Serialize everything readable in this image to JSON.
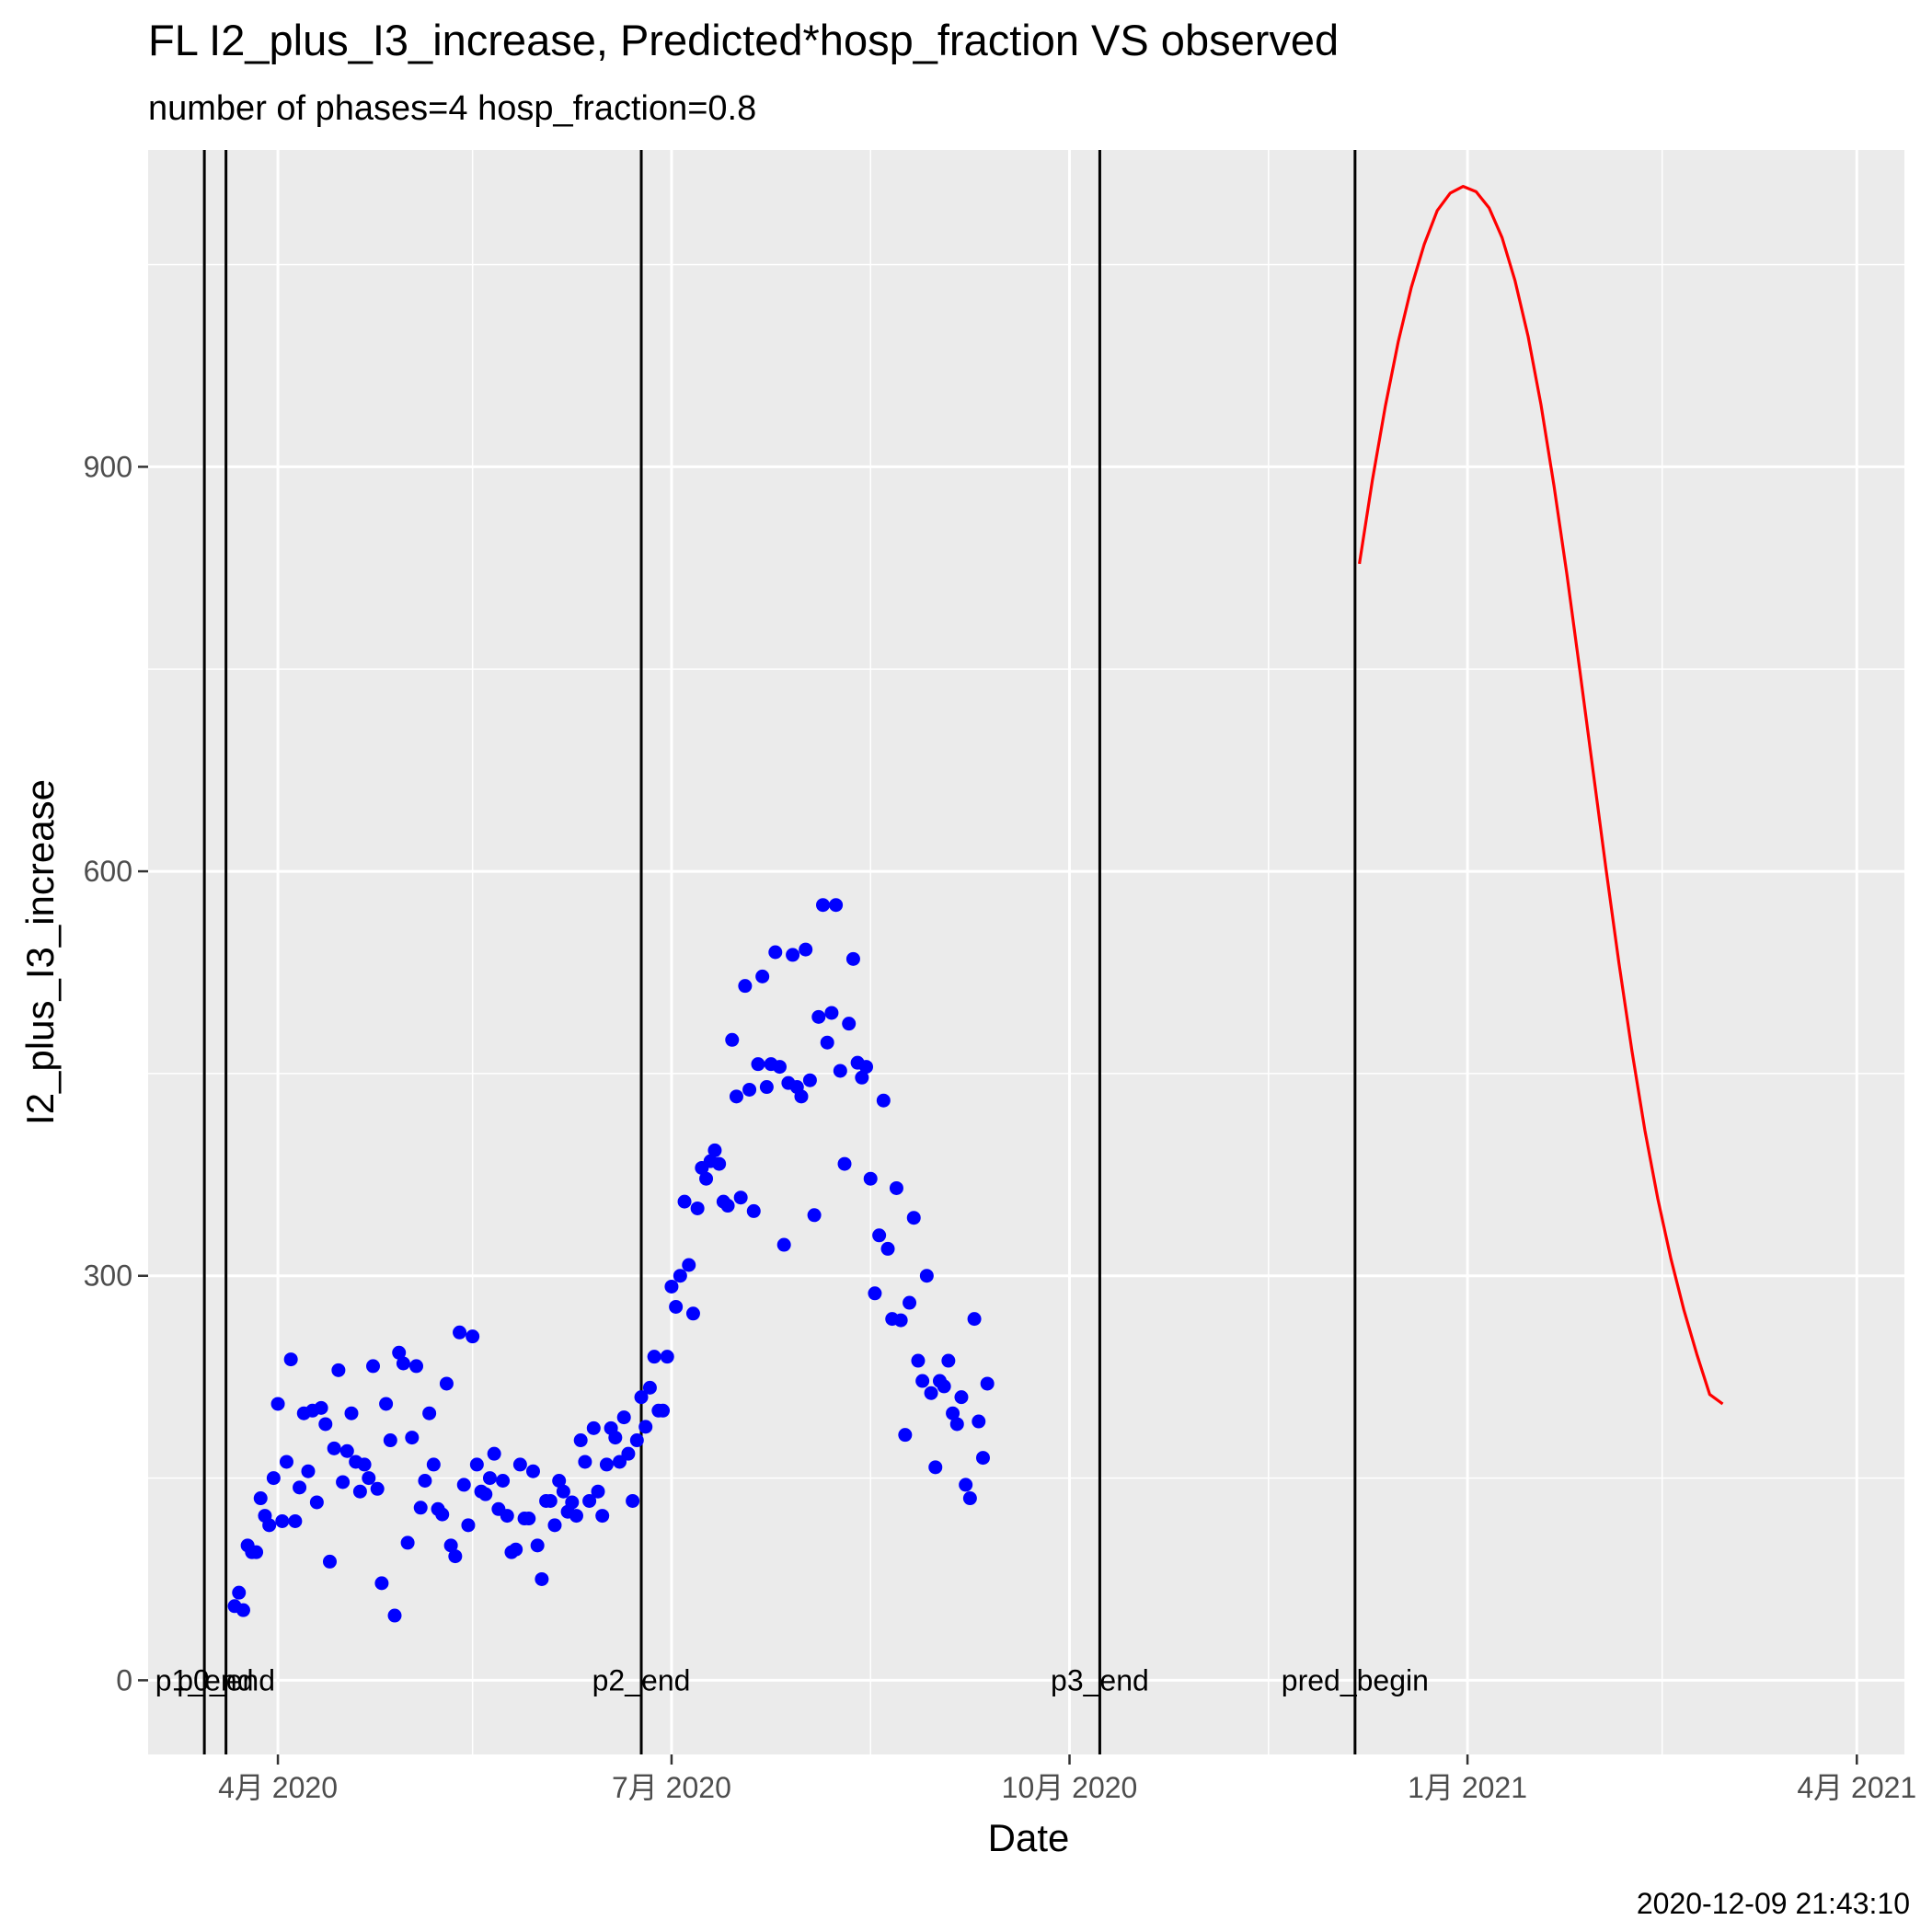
{
  "chart_data": {
    "type": "scatter",
    "title": "FL I2_plus_I3_increase, Predicted*hosp_fraction VS observed",
    "subtitle": "number of phases=4   hosp_fraction=0.8",
    "xlabel": "Date",
    "ylabel": "I2_plus_I3_increase",
    "caption": "2020-12-09 21:43:10",
    "xlim": [
      "2020-03-02",
      "2021-04-12"
    ],
    "ylim": [
      -55,
      1135
    ],
    "y_ticks": [
      0,
      300,
      600,
      900
    ],
    "x_ticks": [
      {
        "date": "2020-04-01",
        "label": "4月 2020"
      },
      {
        "date": "2020-07-01",
        "label": "7月 2020"
      },
      {
        "date": "2020-10-01",
        "label": "10月 2020"
      },
      {
        "date": "2021-01-01",
        "label": "1月 2021"
      },
      {
        "date": "2021-04-01",
        "label": "4月 2021"
      }
    ],
    "x_minor_ticks": [
      "2020-05-16",
      "2020-08-16",
      "2020-11-16",
      "2021-02-15"
    ],
    "grid": true,
    "panel_background": "#ebebeb",
    "vlines": [
      {
        "date": "2020-03-15",
        "label": "p1_end"
      },
      {
        "date": "2020-03-20",
        "label": "p0_end"
      },
      {
        "date": "2020-06-24",
        "label": "p2_end"
      },
      {
        "date": "2020-10-08",
        "label": "p3_end"
      },
      {
        "date": "2020-12-06",
        "label": "pred_begin"
      }
    ],
    "series": [
      {
        "type": "scatter",
        "color": "#0000ff",
        "points": [
          [
            "2020-03-22",
            55
          ],
          [
            "2020-03-23",
            65
          ],
          [
            "2020-03-24",
            52
          ],
          [
            "2020-03-25",
            100
          ],
          [
            "2020-03-26",
            95
          ],
          [
            "2020-03-27",
            95
          ],
          [
            "2020-03-28",
            135
          ],
          [
            "2020-03-29",
            122
          ],
          [
            "2020-03-30",
            115
          ],
          [
            "2020-03-31",
            150
          ],
          [
            "2020-04-01",
            205
          ],
          [
            "2020-04-02",
            118
          ],
          [
            "2020-04-03",
            162
          ],
          [
            "2020-04-04",
            238
          ],
          [
            "2020-04-05",
            118
          ],
          [
            "2020-04-06",
            143
          ],
          [
            "2020-04-07",
            198
          ],
          [
            "2020-04-08",
            155
          ],
          [
            "2020-04-09",
            200
          ],
          [
            "2020-04-10",
            132
          ],
          [
            "2020-04-11",
            202
          ],
          [
            "2020-04-12",
            190
          ],
          [
            "2020-04-13",
            88
          ],
          [
            "2020-04-14",
            172
          ],
          [
            "2020-04-15",
            230
          ],
          [
            "2020-04-16",
            147
          ],
          [
            "2020-04-17",
            170
          ],
          [
            "2020-04-18",
            198
          ],
          [
            "2020-04-19",
            162
          ],
          [
            "2020-04-20",
            140
          ],
          [
            "2020-04-21",
            160
          ],
          [
            "2020-04-22",
            150
          ],
          [
            "2020-04-23",
            233
          ],
          [
            "2020-04-24",
            142
          ],
          [
            "2020-04-25",
            72
          ],
          [
            "2020-04-26",
            205
          ],
          [
            "2020-04-27",
            178
          ],
          [
            "2020-04-28",
            48
          ],
          [
            "2020-04-29",
            243
          ],
          [
            "2020-04-30",
            235
          ],
          [
            "2020-05-01",
            102
          ],
          [
            "2020-05-02",
            180
          ],
          [
            "2020-05-03",
            233
          ],
          [
            "2020-05-04",
            128
          ],
          [
            "2020-05-05",
            148
          ],
          [
            "2020-05-06",
            198
          ],
          [
            "2020-05-07",
            160
          ],
          [
            "2020-05-08",
            127
          ],
          [
            "2020-05-09",
            123
          ],
          [
            "2020-05-10",
            220
          ],
          [
            "2020-05-11",
            100
          ],
          [
            "2020-05-12",
            92
          ],
          [
            "2020-05-13",
            258
          ],
          [
            "2020-05-14",
            145
          ],
          [
            "2020-05-15",
            115
          ],
          [
            "2020-05-16",
            255
          ],
          [
            "2020-05-17",
            160
          ],
          [
            "2020-05-18",
            140
          ],
          [
            "2020-05-19",
            138
          ],
          [
            "2020-05-20",
            150
          ],
          [
            "2020-05-21",
            168
          ],
          [
            "2020-05-22",
            127
          ],
          [
            "2020-05-23",
            148
          ],
          [
            "2020-05-24",
            122
          ],
          [
            "2020-05-25",
            95
          ],
          [
            "2020-05-26",
            97
          ],
          [
            "2020-05-27",
            160
          ],
          [
            "2020-05-28",
            120
          ],
          [
            "2020-05-29",
            120
          ],
          [
            "2020-05-30",
            155
          ],
          [
            "2020-05-31",
            100
          ],
          [
            "2020-06-01",
            75
          ],
          [
            "2020-06-02",
            133
          ],
          [
            "2020-06-03",
            133
          ],
          [
            "2020-06-04",
            115
          ],
          [
            "2020-06-05",
            148
          ],
          [
            "2020-06-06",
            140
          ],
          [
            "2020-06-07",
            125
          ],
          [
            "2020-06-08",
            132
          ],
          [
            "2020-06-09",
            122
          ],
          [
            "2020-06-10",
            178
          ],
          [
            "2020-06-11",
            162
          ],
          [
            "2020-06-12",
            133
          ],
          [
            "2020-06-13",
            187
          ],
          [
            "2020-06-14",
            140
          ],
          [
            "2020-06-15",
            122
          ],
          [
            "2020-06-16",
            160
          ],
          [
            "2020-06-17",
            187
          ],
          [
            "2020-06-18",
            180
          ],
          [
            "2020-06-19",
            162
          ],
          [
            "2020-06-20",
            195
          ],
          [
            "2020-06-21",
            168
          ],
          [
            "2020-06-22",
            133
          ],
          [
            "2020-06-23",
            178
          ],
          [
            "2020-06-24",
            210
          ],
          [
            "2020-06-25",
            188
          ],
          [
            "2020-06-26",
            217
          ],
          [
            "2020-06-27",
            240
          ],
          [
            "2020-06-28",
            200
          ],
          [
            "2020-06-29",
            200
          ],
          [
            "2020-06-30",
            240
          ],
          [
            "2020-07-01",
            292
          ],
          [
            "2020-07-02",
            277
          ],
          [
            "2020-07-03",
            300
          ],
          [
            "2020-07-04",
            355
          ],
          [
            "2020-07-05",
            308
          ],
          [
            "2020-07-06",
            272
          ],
          [
            "2020-07-07",
            350
          ],
          [
            "2020-07-08",
            380
          ],
          [
            "2020-07-09",
            372
          ],
          [
            "2020-07-10",
            385
          ],
          [
            "2020-07-11",
            393
          ],
          [
            "2020-07-12",
            383
          ],
          [
            "2020-07-13",
            355
          ],
          [
            "2020-07-14",
            352
          ],
          [
            "2020-07-15",
            475
          ],
          [
            "2020-07-16",
            433
          ],
          [
            "2020-07-17",
            358
          ],
          [
            "2020-07-18",
            515
          ],
          [
            "2020-07-19",
            438
          ],
          [
            "2020-07-20",
            348
          ],
          [
            "2020-07-21",
            457
          ],
          [
            "2020-07-22",
            522
          ],
          [
            "2020-07-23",
            440
          ],
          [
            "2020-07-24",
            457
          ],
          [
            "2020-07-25",
            540
          ],
          [
            "2020-07-26",
            455
          ],
          [
            "2020-07-27",
            323
          ],
          [
            "2020-07-28",
            443
          ],
          [
            "2020-07-29",
            538
          ],
          [
            "2020-07-30",
            440
          ],
          [
            "2020-07-31",
            433
          ],
          [
            "2020-08-01",
            542
          ],
          [
            "2020-08-02",
            445
          ],
          [
            "2020-08-03",
            345
          ],
          [
            "2020-08-04",
            492
          ],
          [
            "2020-08-05",
            575
          ],
          [
            "2020-08-06",
            473
          ],
          [
            "2020-08-07",
            495
          ],
          [
            "2020-08-08",
            575
          ],
          [
            "2020-08-09",
            452
          ],
          [
            "2020-08-10",
            383
          ],
          [
            "2020-08-11",
            487
          ],
          [
            "2020-08-12",
            535
          ],
          [
            "2020-08-13",
            458
          ],
          [
            "2020-08-14",
            447
          ],
          [
            "2020-08-15",
            455
          ],
          [
            "2020-08-16",
            372
          ],
          [
            "2020-08-17",
            287
          ],
          [
            "2020-08-18",
            330
          ],
          [
            "2020-08-19",
            430
          ],
          [
            "2020-08-20",
            320
          ],
          [
            "2020-08-21",
            268
          ],
          [
            "2020-08-22",
            365
          ],
          [
            "2020-08-23",
            267
          ],
          [
            "2020-08-24",
            182
          ],
          [
            "2020-08-25",
            280
          ],
          [
            "2020-08-26",
            343
          ],
          [
            "2020-08-27",
            237
          ],
          [
            "2020-08-28",
            222
          ],
          [
            "2020-08-29",
            300
          ],
          [
            "2020-08-30",
            213
          ],
          [
            "2020-08-31",
            158
          ],
          [
            "2020-09-01",
            222
          ],
          [
            "2020-09-02",
            218
          ],
          [
            "2020-09-03",
            237
          ],
          [
            "2020-09-04",
            198
          ],
          [
            "2020-09-05",
            190
          ],
          [
            "2020-09-06",
            210
          ],
          [
            "2020-09-07",
            145
          ],
          [
            "2020-09-08",
            135
          ],
          [
            "2020-09-09",
            268
          ],
          [
            "2020-09-10",
            192
          ],
          [
            "2020-09-11",
            165
          ],
          [
            "2020-09-12",
            220
          ]
        ]
      },
      {
        "type": "line",
        "color": "#ff0000",
        "points": [
          [
            "2020-12-07",
            828
          ],
          [
            "2020-12-10",
            890
          ],
          [
            "2020-12-13",
            945
          ],
          [
            "2020-12-16",
            993
          ],
          [
            "2020-12-19",
            1033
          ],
          [
            "2020-12-22",
            1065
          ],
          [
            "2020-12-25",
            1090
          ],
          [
            "2020-12-28",
            1103
          ],
          [
            "2020-12-31",
            1108
          ],
          [
            "2021-01-03",
            1104
          ],
          [
            "2021-01-06",
            1092
          ],
          [
            "2021-01-09",
            1070
          ],
          [
            "2021-01-12",
            1038
          ],
          [
            "2021-01-15",
            997
          ],
          [
            "2021-01-18",
            946
          ],
          [
            "2021-01-21",
            886
          ],
          [
            "2021-01-24",
            820
          ],
          [
            "2021-01-27",
            748
          ],
          [
            "2021-01-30",
            675
          ],
          [
            "2021-02-02",
            602
          ],
          [
            "2021-02-05",
            532
          ],
          [
            "2021-02-08",
            467
          ],
          [
            "2021-02-11",
            408
          ],
          [
            "2021-02-14",
            357
          ],
          [
            "2021-02-17",
            313
          ],
          [
            "2021-02-20",
            275
          ],
          [
            "2021-02-23",
            242
          ],
          [
            "2021-02-26",
            212
          ],
          [
            "2021-03-01",
            205
          ]
        ]
      }
    ]
  }
}
